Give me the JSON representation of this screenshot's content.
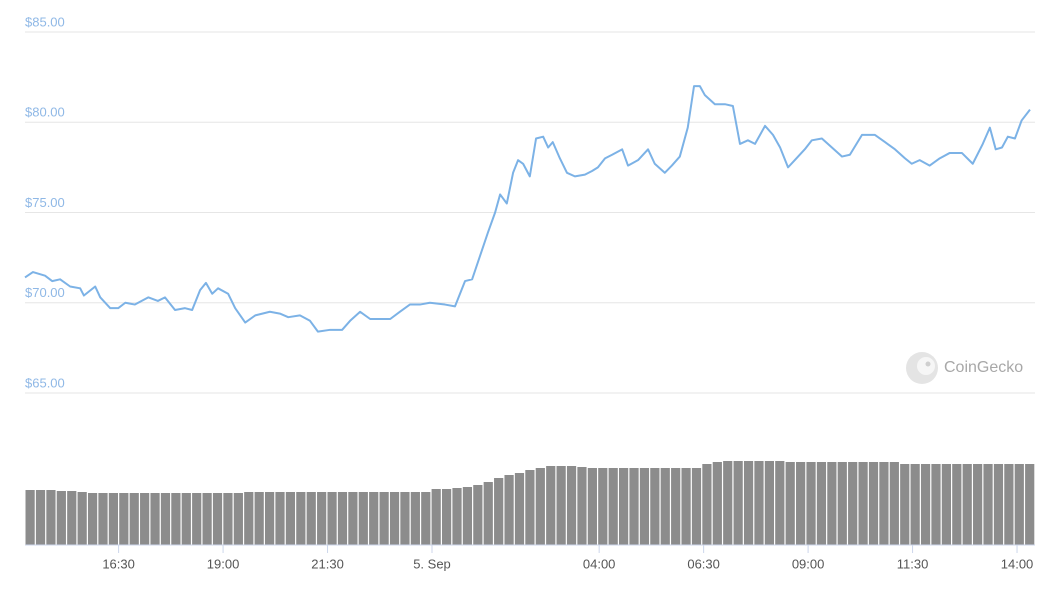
{
  "chart_data": {
    "type": "line",
    "watermark": "CoinGecko",
    "color": "#7cb2e6",
    "x": [
      -9.74,
      -9.55,
      -9.26,
      -9.09,
      -8.9,
      -8.66,
      -8.42,
      -8.33,
      -8.06,
      -7.94,
      -7.7,
      -7.51,
      -7.34,
      -7.11,
      -6.79,
      -6.56,
      -6.39,
      -6.15,
      -5.91,
      -5.74,
      -5.55,
      -5.41,
      -5.26,
      -5.12,
      -4.88,
      -4.71,
      -4.47,
      -4.23,
      -3.88,
      -3.64,
      -3.44,
      -3.16,
      -2.92,
      -2.73,
      -2.44,
      -2.15,
      -1.96,
      -1.72,
      -1.48,
      -1.24,
      -1.0,
      -0.77,
      -0.53,
      -0.29,
      -0.05,
      0.31,
      0.55,
      0.79,
      0.96,
      1.15,
      1.34,
      1.51,
      1.63,
      1.79,
      1.94,
      2.06,
      2.18,
      2.34,
      2.49,
      2.66,
      2.78,
      2.89,
      3.06,
      3.23,
      3.42,
      3.66,
      3.83,
      3.97,
      4.14,
      4.31,
      4.55,
      4.69,
      4.93,
      5.17,
      5.33,
      5.57,
      5.74,
      5.93,
      6.12,
      6.27,
      6.41,
      6.53,
      6.77,
      7.01,
      7.2,
      7.37,
      7.56,
      7.73,
      7.97,
      8.16,
      8.33,
      8.52,
      8.68,
      8.92,
      9.09,
      9.33,
      9.57,
      9.81,
      10.0,
      10.29,
      10.6,
      10.84,
      11.08,
      11.32,
      11.48,
      11.67,
      11.91,
      12.15,
      12.39,
      12.68,
      12.94,
      13.18,
      13.35,
      13.49,
      13.64,
      13.78,
      13.95,
      14.11,
      14.31
    ],
    "values": [
      71.4,
      71.7,
      71.5,
      71.2,
      71.3,
      70.9,
      70.8,
      70.4,
      70.9,
      70.3,
      69.7,
      69.7,
      70.0,
      69.9,
      70.3,
      70.1,
      70.3,
      69.6,
      69.7,
      69.6,
      70.7,
      71.1,
      70.5,
      70.8,
      70.5,
      69.7,
      68.9,
      69.3,
      69.5,
      69.4,
      69.2,
      69.3,
      69.0,
      68.4,
      68.5,
      68.5,
      69.0,
      69.5,
      69.1,
      69.1,
      69.1,
      69.5,
      69.9,
      69.9,
      70.0,
      69.9,
      69.8,
      71.2,
      71.3,
      72.6,
      73.9,
      75.0,
      76.0,
      75.5,
      77.2,
      77.9,
      77.7,
      77.0,
      79.1,
      79.2,
      78.6,
      78.9,
      78.0,
      77.2,
      77.0,
      77.1,
      77.3,
      77.5,
      78.0,
      78.2,
      78.5,
      77.6,
      77.9,
      78.5,
      77.7,
      77.2,
      77.6,
      78.1,
      79.7,
      82.0,
      82.0,
      81.5,
      81.0,
      81.0,
      80.9,
      78.8,
      79.0,
      78.8,
      79.8,
      79.3,
      78.6,
      77.5,
      77.9,
      78.5,
      79.0,
      79.1,
      78.6,
      78.1,
      78.2,
      79.3,
      79.3,
      78.9,
      78.5,
      78.0,
      77.7,
      77.9,
      77.6,
      78.0,
      78.3,
      78.3,
      77.7,
      78.8,
      79.7,
      78.5,
      78.6,
      79.2,
      79.1,
      80.1,
      80.7
    ],
    "xlim": [
      -9.74,
      14.43
    ],
    "xticks": [
      {
        "value": -7.5,
        "label": "16:30"
      },
      {
        "value": -5,
        "label": "19:00"
      },
      {
        "value": -2.5,
        "label": "21:30"
      },
      {
        "value": 0,
        "label": "5. Sep"
      },
      {
        "value": 4,
        "label": "04:00"
      },
      {
        "value": 6.5,
        "label": "06:30"
      },
      {
        "value": 9,
        "label": "09:00"
      },
      {
        "value": 11.5,
        "label": "11:30"
      },
      {
        "value": 14,
        "label": "14:00"
      }
    ],
    "ylim": [
      65,
      85
    ],
    "yticks": [
      {
        "value": 65,
        "label": "$65.00"
      },
      {
        "value": 70,
        "label": "$70.00"
      },
      {
        "value": 75,
        "label": "$75.00"
      },
      {
        "value": 80,
        "label": "$80.00"
      },
      {
        "value": 85,
        "label": "$85.00"
      }
    ],
    "grid": true,
    "volume": {
      "color": "#8c8c8c",
      "ylim": [
        0,
        100
      ],
      "values": [
        55,
        55,
        55,
        54,
        54,
        53,
        52,
        52,
        52,
        52,
        52,
        52,
        52,
        52,
        52,
        52,
        52,
        52,
        52,
        52,
        52,
        53,
        53,
        53,
        53,
        53,
        53,
        53,
        53,
        53,
        53,
        53,
        53,
        53,
        53,
        53,
        53,
        53,
        53,
        56,
        56,
        57,
        58,
        60,
        63,
        67,
        70,
        72,
        75,
        77,
        79,
        79,
        79,
        78,
        77,
        77,
        77,
        77,
        77,
        77,
        77,
        77,
        77,
        77,
        77,
        81,
        83,
        84,
        84,
        84,
        84,
        84,
        84,
        83,
        83,
        83,
        83,
        83,
        83,
        83,
        83,
        83,
        83,
        83,
        81,
        81,
        81,
        81,
        81,
        81,
        81,
        81,
        81,
        81,
        81,
        81,
        81
      ]
    }
  }
}
